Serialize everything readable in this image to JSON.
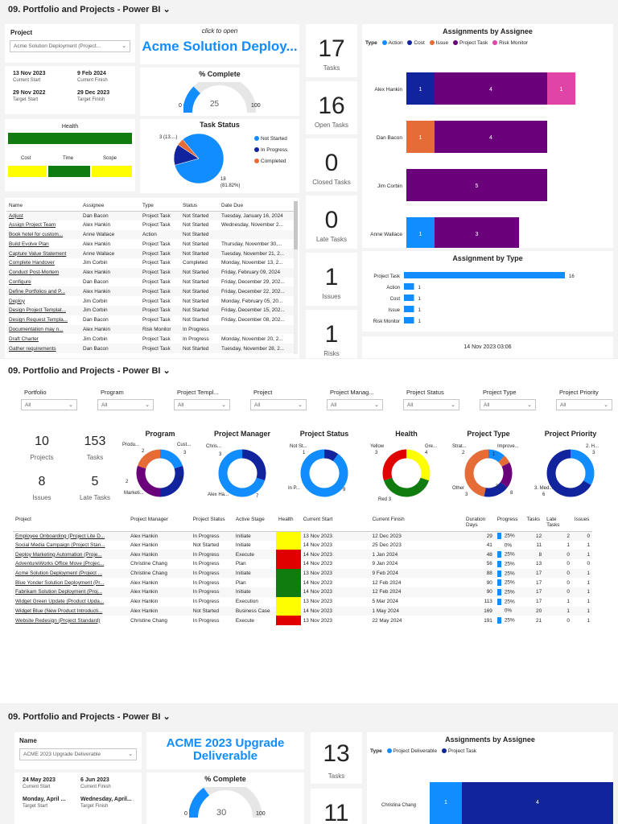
{
  "colors": {
    "accent": "#118dff",
    "dark_blue": "#12239e",
    "orange": "#e66c37",
    "purple": "#6b007b",
    "pink": "#e044a7",
    "green": "#107c10",
    "yellow": "#fffe00",
    "red": "#e00000"
  },
  "section1": {
    "title": "09. Portfolio and Projects - Power BI",
    "project_label": "Project",
    "project_value": "Acme Solution Deployment (Project...",
    "click_to_open": "click to open",
    "project_name": "Acme Solution Deploy...",
    "dates": {
      "current_start": "13 Nov 2023",
      "current_start_lbl": "Current Start",
      "current_finish": "9 Feb 2024",
      "current_finish_lbl": "Current Finish",
      "target_start": "29 Nov 2022",
      "target_start_lbl": "Target Start",
      "target_finish": "29 Dec 2023",
      "target_finish_lbl": "Target Finish"
    },
    "complete": {
      "title": "% Complete",
      "min": "0",
      "value": "25",
      "max": "100",
      "fraction": 0.25
    },
    "health": {
      "title": "Health",
      "cost": "Cost",
      "time": "Time",
      "scope": "Scope"
    },
    "task_status": {
      "title": "Task Status",
      "legend": [
        "Not Started",
        "In Progress",
        "Completed"
      ],
      "label_small": "3 (13....)",
      "label_big": "18",
      "label_big_pct": "(81.82%)"
    },
    "kpis": [
      {
        "value": "17",
        "label": "Tasks"
      },
      {
        "value": "16",
        "label": "Open Tasks"
      },
      {
        "value": "0",
        "label": "Closed Tasks"
      },
      {
        "value": "0",
        "label": "Late Tasks"
      },
      {
        "value": "1",
        "label": "Issues"
      },
      {
        "value": "1",
        "label": "Risks"
      }
    ],
    "table": {
      "headers": [
        "Name",
        "Assignee",
        "Type",
        "Status",
        "Date Due"
      ],
      "rows": [
        [
          "Adjust",
          "Dan Bacon",
          "Project Task",
          "Not Started",
          "Tuesday, January 16, 2024"
        ],
        [
          "Assign Project Team",
          "Alex Hankin",
          "Project Task",
          "Not Started",
          "Wednesday, November 2..."
        ],
        [
          "Book hotel for custom...",
          "Anne Wallace",
          "Action",
          "Not Started",
          ""
        ],
        [
          "Build Evolve Plan",
          "Alex Hankin",
          "Project Task",
          "Not Started",
          "Thursday, November 30,..."
        ],
        [
          "Capture Value Statement",
          "Anne Wallace",
          "Project Task",
          "Not Started",
          "Tuesday, November 21, 2..."
        ],
        [
          "Complete Handover",
          "Jim Corbin",
          "Project Task",
          "Completed",
          "Monday, November 13, 2..."
        ],
        [
          "Conduct Post-Mortem",
          "Alex Hankin",
          "Project Task",
          "Not Started",
          "Friday, February 09, 2024"
        ],
        [
          "Configure",
          "Dan Bacon",
          "Project Task",
          "Not Started",
          "Friday, December 29, 202..."
        ],
        [
          "Define Portfolios and P...",
          "Alex Hankin",
          "Project Task",
          "Not Started",
          "Friday, December 22, 202..."
        ],
        [
          "Deploy",
          "Jim Corbin",
          "Project Task",
          "Not Started",
          "Monday, February 05, 20..."
        ],
        [
          "Design Project Templat...",
          "Jim Corbin",
          "Project Task",
          "Not Started",
          "Friday, December 15, 202..."
        ],
        [
          "Design Request Templa...",
          "Dan Bacon",
          "Project Task",
          "Not Started",
          "Friday, December 08, 202..."
        ],
        [
          "Documentation may n...",
          "Alex Hankin",
          "Risk Monitor",
          "In Progress",
          ""
        ],
        [
          "Draft Charter",
          "Jim Corbin",
          "Project Task",
          "In Progress",
          "Monday, November 20, 2..."
        ],
        [
          "Gather requirements",
          "Dan Bacon",
          "Project Task",
          "Not Started",
          "Tuesday, November 28, 2..."
        ]
      ]
    },
    "assignee_chart": {
      "title": "Assignments by Assignee",
      "type_label": "Type",
      "legend": [
        "Action",
        "Cost",
        "Issue",
        "Project Task",
        "Risk Monitor"
      ]
    },
    "type_chart": {
      "title": "Assignment by Type"
    },
    "timestamp": "14 Nov 2023 03:06"
  },
  "chart_data": [
    {
      "type": "bar",
      "title": "Assignments by Assignee",
      "categories": [
        "Alex Hankin",
        "Dan Bacon",
        "Jim Corbin",
        "Anne Wallace"
      ],
      "series": [
        {
          "name": "Action",
          "values": [
            0,
            0,
            0,
            1
          ]
        },
        {
          "name": "Cost",
          "values": [
            1,
            0,
            0,
            0
          ]
        },
        {
          "name": "Issue",
          "values": [
            0,
            1,
            0,
            0
          ]
        },
        {
          "name": "Project Task",
          "values": [
            4,
            4,
            5,
            3
          ]
        },
        {
          "name": "Risk Monitor",
          "values": [
            1,
            0,
            0,
            0
          ]
        }
      ]
    },
    {
      "type": "bar",
      "title": "Assignment by Type",
      "categories": [
        "Project Task",
        "Action",
        "Cost",
        "Issue",
        "Risk Monitor"
      ],
      "values": [
        16,
        1,
        1,
        1,
        1
      ]
    },
    {
      "type": "pie",
      "title": "Task Status",
      "categories": [
        "Not Started",
        "In Progress",
        "Completed"
      ],
      "values": [
        18,
        3,
        1
      ]
    }
  ],
  "section2": {
    "title": "09. Portfolio and Projects - Power BI",
    "filters": [
      {
        "label": "Portfolio",
        "value": "All"
      },
      {
        "label": "Program",
        "value": "All"
      },
      {
        "label": "Project Templ...",
        "value": "All"
      },
      {
        "label": "Project",
        "value": "All"
      },
      {
        "label": "Project Manag...",
        "value": "All"
      },
      {
        "label": "Project Status",
        "value": "All"
      },
      {
        "label": "Project Type",
        "value": "All"
      },
      {
        "label": "Project Priority",
        "value": "All"
      }
    ],
    "kpis": [
      {
        "value": "10",
        "label": "Projects"
      },
      {
        "value": "153",
        "label": "Tasks"
      },
      {
        "value": "8",
        "label": "Issues"
      },
      {
        "value": "5",
        "label": "Late Tasks"
      }
    ],
    "donuts": [
      {
        "title": "Program",
        "labels": [
          "Produ...",
          "Cust...",
          "Marketi...",
          "2",
          "3",
          "2",
          "3"
        ]
      },
      {
        "title": "Project Manager",
        "labels": [
          "Chris...",
          "3",
          "Alex Ha...",
          "7"
        ]
      },
      {
        "title": "Project Status",
        "labels": [
          "Not St...",
          "1",
          "In P...",
          "9"
        ]
      },
      {
        "title": "Health",
        "labels": [
          "Yellow",
          "3",
          "Gre...",
          "4",
          "Red 3"
        ]
      },
      {
        "title": "Project Type",
        "labels": [
          "Strat...",
          "Improve...",
          "2",
          "1",
          "Other",
          "3",
          "3",
          "8"
        ]
      },
      {
        "title": "Project Priority",
        "labels": [
          "2. H...",
          "3",
          "3. Med...",
          "6"
        ]
      }
    ],
    "table": {
      "headers": [
        "Project",
        "Project Manager",
        "Project Status",
        "Active Stage",
        "Health",
        "Current Start",
        "Current Finish",
        "Duration Days",
        "Progress",
        "Tasks",
        "Late Tasks",
        "Issues"
      ],
      "rows": [
        {
          "p": "Employee Onboarding (Project Lite D...",
          "pm": "Alex Hankin",
          "st": "In Progress",
          "stage": "Initiate",
          "h": "yellow",
          "cs": "13 Nov 2023",
          "cf": "12 Dec 2023",
          "d": "29",
          "pr": "25%",
          "t": "12",
          "lt": "2",
          "i": "0"
        },
        {
          "p": "Social Media Campaign (Project Stan...",
          "pm": "Alex Hankin",
          "st": "Not Started",
          "stage": "Initiate",
          "h": "yellow",
          "cs": "14 Nov 2023",
          "cf": "25 Dec 2023",
          "d": "41",
          "pr": "0%",
          "t": "11",
          "lt": "1",
          "i": "1"
        },
        {
          "p": "Deploy Marketing Automation (Proje...",
          "pm": "Alex Hankin",
          "st": "In Progress",
          "stage": "Execute",
          "h": "red",
          "cs": "14 Nov 2023",
          "cf": "1 Jan 2024",
          "d": "48",
          "pr": "25%",
          "t": "8",
          "lt": "0",
          "i": "1"
        },
        {
          "p": "AdventureWorks Office Move (Projec...",
          "pm": "Christine Chang",
          "st": "In Progress",
          "stage": "Plan",
          "h": "red",
          "cs": "14 Nov 2023",
          "cf": "9 Jan 2024",
          "d": "56",
          "pr": "25%",
          "t": "13",
          "lt": "0",
          "i": "0"
        },
        {
          "p": "Acme Solution Deployment (Project ...",
          "pm": "Christine Chang",
          "st": "In Progress",
          "stage": "Initiate",
          "h": "green",
          "cs": "13 Nov 2023",
          "cf": "9 Feb 2024",
          "d": "88",
          "pr": "25%",
          "t": "17",
          "lt": "0",
          "i": "1"
        },
        {
          "p": "Blue Yonder Solution Deployment (Pr...",
          "pm": "Alex Hankin",
          "st": "In Progress",
          "stage": "Plan",
          "h": "green",
          "cs": "14 Nov 2023",
          "cf": "12 Feb 2024",
          "d": "90",
          "pr": "25%",
          "t": "17",
          "lt": "0",
          "i": "1"
        },
        {
          "p": "Fabrikam Solution Deployment (Proj...",
          "pm": "Alex Hankin",
          "st": "In Progress",
          "stage": "Initiate",
          "h": "green",
          "cs": "14 Nov 2023",
          "cf": "12 Feb 2024",
          "d": "90",
          "pr": "25%",
          "t": "17",
          "lt": "0",
          "i": "1"
        },
        {
          "p": "Widget Green Update (Product Upda...",
          "pm": "Alex Hankin",
          "st": "In Progress",
          "stage": "Execution",
          "h": "yellow",
          "cs": "13 Nov 2023",
          "cf": "5 Mar 2024",
          "d": "113",
          "pr": "25%",
          "t": "17",
          "lt": "1",
          "i": "1"
        },
        {
          "p": "Widget Blue (New Product Introducti...",
          "pm": "Alex Hankin",
          "st": "Not Started",
          "stage": "Business Case",
          "h": "yellow",
          "cs": "14 Nov 2023",
          "cf": "1 May 2024",
          "d": "169",
          "pr": "0%",
          "t": "20",
          "lt": "1",
          "i": "1"
        },
        {
          "p": "Website Redesign (Project Standard)",
          "pm": "Christine Chang",
          "st": "In Progress",
          "stage": "Execute",
          "h": "red",
          "cs": "13 Nov 2023",
          "cf": "22 May 2024",
          "d": "191",
          "pr": "25%",
          "t": "21",
          "lt": "0",
          "i": "1"
        }
      ]
    }
  },
  "section3": {
    "title": "09. Portfolio and Projects - Power BI",
    "name_label": "Name",
    "name_value": "ACME 2023 Upgrade Deliverable",
    "big_title": "ACME 2023 Upgrade Deliverable",
    "dates": {
      "current_start": "24 May 2023",
      "current_start_lbl": "Current Start",
      "current_finish": "6 Jun 2023",
      "current_finish_lbl": "Current Finish",
      "target_start": "Monday, April ...",
      "target_start_lbl": "Target Start",
      "target_finish": "Wednesday, April...",
      "target_finish_lbl": "Target Finish"
    },
    "complete": {
      "title": "% Complete",
      "min": "0",
      "value": "30",
      "max": "100",
      "fraction": 0.3
    },
    "kpis": [
      {
        "value": "13",
        "label": "Tasks"
      },
      {
        "value": "11",
        "label": ""
      }
    ],
    "assignee_chart": {
      "title": "Assignments by Assignee",
      "type_label": "Type",
      "legend": [
        "Project Deliverable",
        "Project Task"
      ],
      "row": "Christina Chang",
      "v1": "1",
      "v2": "4"
    }
  }
}
